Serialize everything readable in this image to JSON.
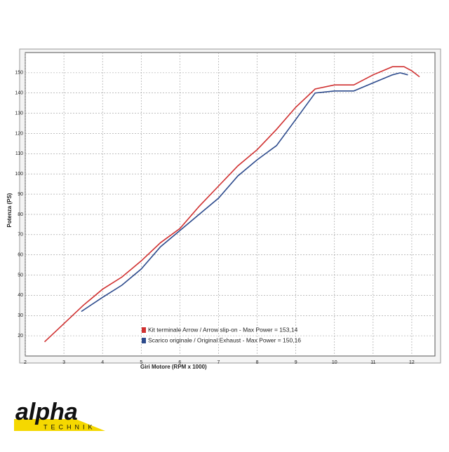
{
  "chart_data": {
    "type": "line",
    "x_label": "Giri Motore (RPM x 1000)",
    "y_label": "Potenza (PS)",
    "xlim": [
      2,
      12.6
    ],
    "xticks": [
      2,
      3,
      4,
      5,
      6,
      7,
      8,
      9,
      10,
      11,
      12
    ],
    "ylim": [
      10,
      160
    ],
    "yticks": [
      20,
      30,
      40,
      50,
      60,
      70,
      80,
      90,
      100,
      110,
      120,
      130,
      140,
      150
    ],
    "grid": true,
    "series": [
      {
        "name": "Kit terminale Arrow / Arrow slip-on - Max Power = 153,14",
        "color": "#d03030",
        "x": [
          2.5,
          3,
          3.5,
          4,
          4.5,
          5,
          5.5,
          6,
          6.5,
          7,
          7.5,
          8,
          8.5,
          9,
          9.5,
          10,
          10.5,
          11,
          11.5,
          11.8,
          12,
          12.2
        ],
        "values": [
          17,
          26,
          35,
          43,
          49,
          57,
          66,
          73,
          84,
          94,
          104,
          112,
          122,
          133,
          142,
          144,
          144,
          149,
          153,
          153,
          151,
          148
        ]
      },
      {
        "name": "Scarico originale / Original Exhaust - Max Power = 150,16",
        "color": "#2c4a8c",
        "x": [
          3.45,
          4,
          4.5,
          5,
          5.5,
          6,
          6.5,
          7,
          7.5,
          8,
          8.5,
          9,
          9.5,
          10,
          10.5,
          11,
          11.5,
          11.7,
          11.9
        ],
        "values": [
          32,
          39,
          45,
          53,
          64,
          72,
          80,
          88,
          99,
          107,
          114,
          127,
          140,
          141,
          141,
          145,
          149,
          150,
          149
        ]
      }
    ]
  },
  "logo": {
    "name": "alpha",
    "tagline": "TECHNIK"
  }
}
